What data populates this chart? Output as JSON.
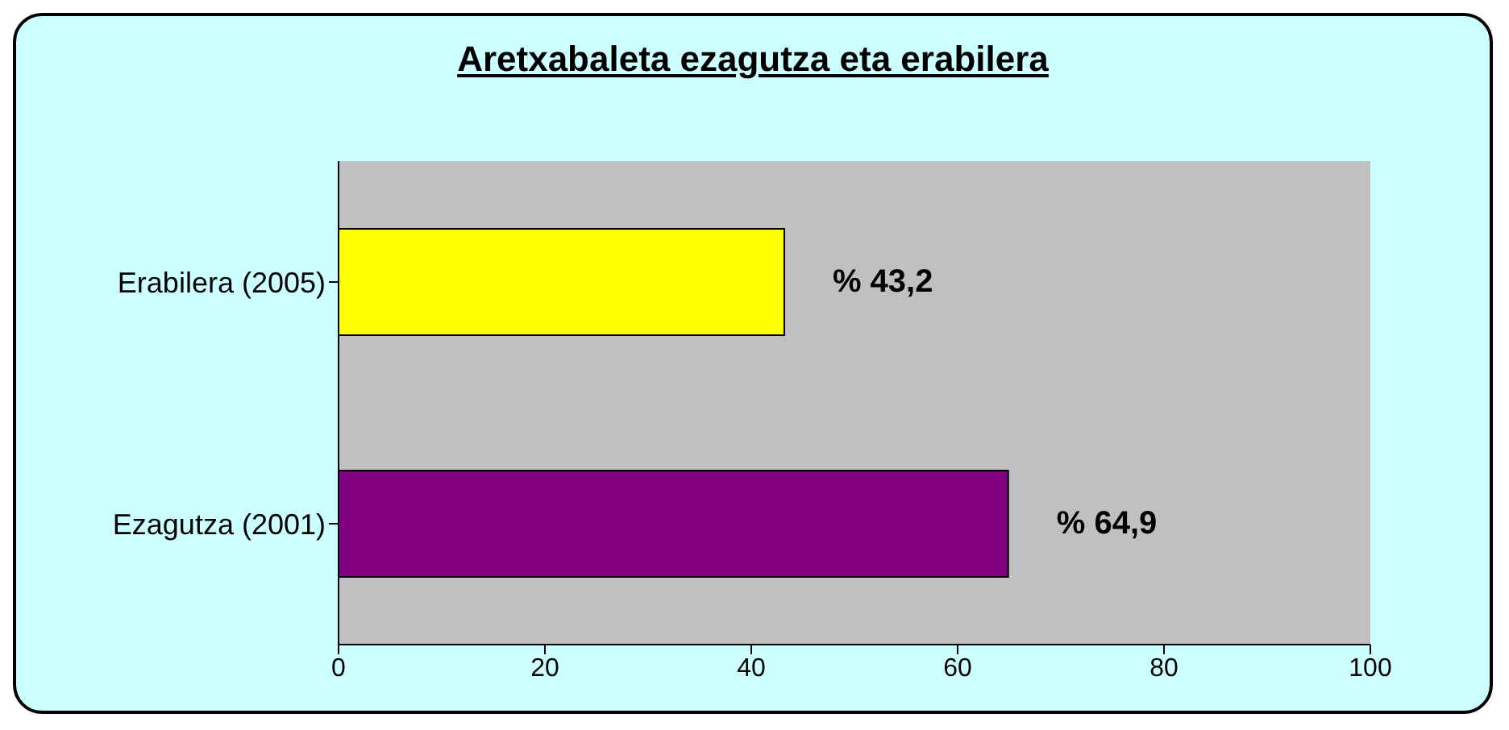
{
  "chart_data": {
    "type": "bar",
    "orientation": "horizontal",
    "title": "Aretxabaleta ezagutza eta erabilera",
    "categories": [
      "Erabilera (2005)",
      "Ezagutza (2001)"
    ],
    "values": [
      43.2,
      64.9
    ],
    "colors": [
      "#ffff00",
      "#800080"
    ],
    "value_labels": [
      "% 43,2",
      "% 64,9"
    ],
    "xlim": [
      0,
      100
    ],
    "xticks": [
      0,
      20,
      40,
      60,
      80,
      100
    ],
    "grid": false
  }
}
